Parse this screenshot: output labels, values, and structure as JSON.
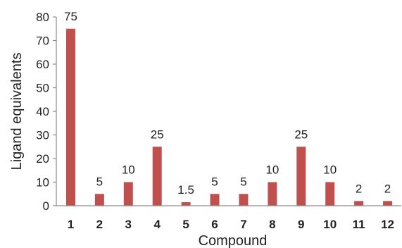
{
  "chart_data": {
    "type": "bar",
    "categories": [
      "1",
      "2",
      "3",
      "4",
      "5",
      "6",
      "7",
      "8",
      "9",
      "10",
      "11",
      "12"
    ],
    "values": [
      75,
      5,
      10,
      25,
      1.5,
      5,
      5,
      10,
      25,
      10,
      2,
      2
    ],
    "data_labels": [
      "75",
      "5",
      "10",
      "25",
      "1.5",
      "5",
      "5",
      "10",
      "25",
      "10",
      "2",
      "2"
    ],
    "xlabel": "Compound",
    "ylabel": "Ligand equivalents",
    "ylim": [
      0,
      80
    ],
    "yticks": [
      0,
      10,
      20,
      30,
      40,
      50,
      60,
      70,
      80
    ],
    "grid": false,
    "legend": "none",
    "bar_color": "#c0504d"
  }
}
